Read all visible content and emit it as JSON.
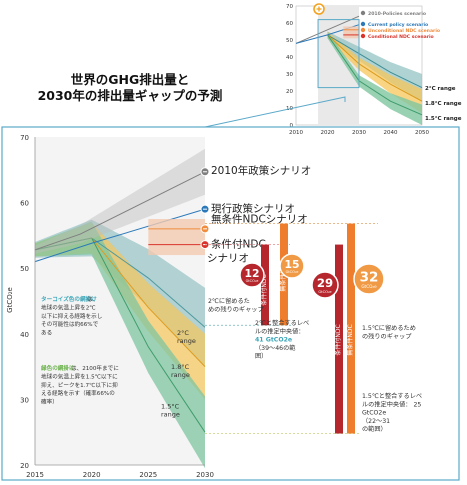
{
  "title": {
    "line1": "世界のGHG排出量と",
    "line2": "2030年の排出量ギャップの予測"
  },
  "colors": {
    "policy": "#7f7f7f",
    "current": "#2b79b9",
    "unconditional": "#f08c3c",
    "conditional": "#d9332b",
    "range2c": "#8dbfc0",
    "range18c": "#f5c65a",
    "range15c": "#7fc5a0",
    "gap_dark": "#b5272d",
    "gap_orange": "#ee7e2e",
    "teal_text": "#3aa6b9",
    "green_text": "#6cb24d",
    "frame": "#5aa9c9"
  },
  "chart_data": [
    {
      "type": "line",
      "role": "main",
      "x": [
        2015,
        2020,
        2025,
        2030
      ],
      "xlim": [
        2015,
        2030
      ],
      "ylim": [
        20,
        70
      ],
      "xticks": [
        "2015",
        "2020",
        "2025",
        "2030"
      ],
      "yticks": [
        "20",
        "30",
        "40",
        "50",
        "60",
        "70"
      ],
      "ylabel": "GtCO₂e",
      "grid": false,
      "series": [
        {
          "name": "2010年政策シナリオ",
          "points": [
            [
              2015,
              52.8
            ],
            [
              2019,
              55.2
            ],
            [
              2030,
              64.7
            ]
          ]
        },
        {
          "name": "現行政策シナリオ",
          "points": [
            [
              2015,
              51.0
            ],
            [
              2020,
              53.8
            ],
            [
              2030,
              59.0
            ]
          ]
        },
        {
          "name": "無条件NDCシナリオ",
          "points": [
            [
              2025,
              56.0
            ],
            [
              2030,
              56.0
            ]
          ]
        },
        {
          "name": "条件付NDC シナリオ",
          "points": [
            [
              2025,
              53.6
            ],
            [
              2030,
              53.6
            ]
          ]
        },
        {
          "name": "2°C range",
          "points": [
            [
              2015,
              52.8
            ],
            [
              2020,
              54.6
            ],
            [
              2025,
              48.5
            ],
            [
              2030,
              41.0
            ]
          ]
        },
        {
          "name": "1.8°C range",
          "points": [
            [
              2015,
              52.8
            ],
            [
              2020,
              54.6
            ],
            [
              2025,
              44.0
            ],
            [
              2030,
              35.0
            ]
          ]
        },
        {
          "name": "1.5°C range",
          "points": [
            [
              2015,
              52.8
            ],
            [
              2020,
              54.6
            ],
            [
              2025,
              38.0
            ],
            [
              2030,
              25.0
            ]
          ]
        }
      ],
      "gaps": [
        {
          "value": "12",
          "unit": "GtCO₂e",
          "label": "条件付NDC"
        },
        {
          "value": "15",
          "unit": "GtCO₂e",
          "label": "無条件NDC"
        },
        {
          "value": "29",
          "unit": "GtCO₂e",
          "label": "条件付NDC"
        },
        {
          "value": "32",
          "unit": "GtCO₂e",
          "label": "無条件NDC"
        }
      ]
    },
    {
      "type": "line",
      "role": "inset",
      "x": [
        2010,
        2020,
        2030,
        2040,
        2050
      ],
      "xlim": [
        2010,
        2050
      ],
      "ylim": [
        0,
        70
      ],
      "xticks": [
        "2010",
        "2020",
        "2030",
        "2040",
        "2050"
      ],
      "yticks": [
        "0",
        "10",
        "20",
        "30",
        "40",
        "50",
        "60",
        "70"
      ],
      "series": [
        {
          "name": "2010-Policies scenario",
          "points": [
            [
              2010,
              48
            ],
            [
              2020,
              56
            ],
            [
              2030,
              64
            ]
          ]
        },
        {
          "name": "Current policy scenario",
          "points": [
            [
              2010,
              48
            ],
            [
              2020,
              53
            ],
            [
              2030,
              59
            ]
          ]
        },
        {
          "name": "Unconditional NDC scenario",
          "points": [
            [
              2025,
              56
            ],
            [
              2030,
              56
            ]
          ]
        },
        {
          "name": "Conditional NDC scenario",
          "points": [
            [
              2025,
              53
            ],
            [
              2030,
              53
            ]
          ]
        },
        {
          "name": "2°C range",
          "points": [
            [
              2020,
              53
            ],
            [
              2030,
              42
            ],
            [
              2040,
              31
            ],
            [
              2050,
              22
            ]
          ]
        },
        {
          "name": "1.8°C range",
          "points": [
            [
              2020,
              53
            ],
            [
              2030,
              36
            ],
            [
              2040,
              24
            ],
            [
              2050,
              14
            ]
          ]
        },
        {
          "name": "1.5°C range",
          "points": [
            [
              2020,
              53
            ],
            [
              2030,
              26
            ],
            [
              2040,
              14
            ],
            [
              2050,
              6
            ]
          ]
        }
      ]
    }
  ],
  "labels": {
    "policy": "2010年政策シナリオ",
    "current": "現行政策シナリオ",
    "unconditional": "無条件NDCシナリオ",
    "conditional_1": "条件付NDC",
    "conditional_2": "シナリオ",
    "r2c_1": "2°C",
    "r2c_2": "range",
    "r18c_1": "1.8°C",
    "r18c_2": "range",
    "r15c_1": "1.5°C",
    "r15c_2": "range"
  },
  "inset_legend": {
    "policy": "2010-Policies scenario",
    "current": "Current policy scenario",
    "unconditional": "Unconditional NDC scenario",
    "conditional": "Conditional NDC scenario",
    "r2c": "2°C range",
    "r18c": "1.8°C range",
    "r15c": "1.5°C range"
  },
  "notes": {
    "teal": [
      {
        "text": "ターコイズ色の網掛け",
        "hl": true
      },
      {
        "text": "は、",
        "hl": false
      },
      {
        "text": "地球の気温上昇を2℃",
        "hl": false
      },
      {
        "text": "以下に抑える経路を示し",
        "hl": false
      },
      {
        "text": "その可能性は約66%で",
        "hl": false
      },
      {
        "text": "ある",
        "hl": false
      }
    ],
    "green": [
      {
        "text": "緑色の網掛け",
        "hl": true
      },
      {
        "text": "は、2100年までに",
        "hl": false
      },
      {
        "text": "地球の気温上昇を1.5℃以下に",
        "hl": false
      },
      {
        "text": "抑え、ピークを1.7℃以下に抑",
        "hl": false
      },
      {
        "text": "える経路を示す（確率66%の",
        "hl": false
      },
      {
        "text": "確率）",
        "hl": false
      }
    ]
  },
  "annotations": {
    "gap2_1": "2℃に留めるた",
    "gap2_2": "めの残りのギャップ",
    "gap15_1": "1.5℃に留めるため",
    "gap15_2": "の残りのギャップ",
    "est2_1": "2℃と整合するレベ",
    "est2_2": "ルの推定中央値：",
    "est2_3": "41 GtCO2e",
    "est2_4": "（39～46の範",
    "est2_5": "囲）",
    "est15_1": "1.5℃と整合するレベ",
    "est15_2": "ルの推定中央値： 25",
    "est15_3": "GtCO2e",
    "est15_4": "（22～31",
    "est15_5": "の範囲）"
  }
}
